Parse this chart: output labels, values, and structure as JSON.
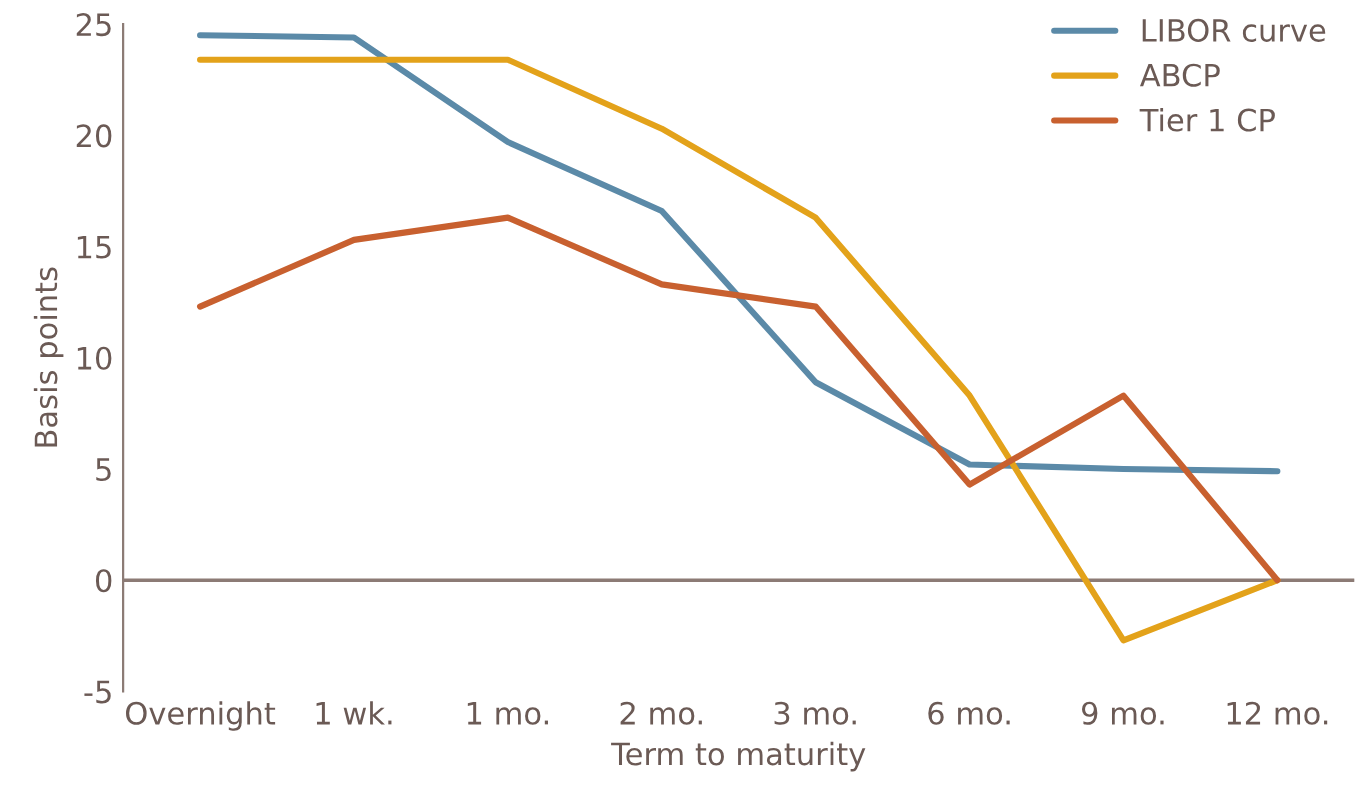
{
  "chart_data": {
    "type": "line",
    "xlabel": "Term to maturity",
    "ylabel": "Basis points",
    "categories": [
      "Overnight",
      "1 wk.",
      "1 mo.",
      "2 mo.",
      "3 mo.",
      "6 mo.",
      "9 mo.",
      "12 mo."
    ],
    "series": [
      {
        "name": "LIBOR curve",
        "color": "#5b8aa8",
        "values": [
          24.5,
          24.4,
          19.7,
          16.6,
          8.9,
          5.2,
          5.0,
          4.9
        ]
      },
      {
        "name": "ABCP",
        "color": "#e3a21a",
        "values": [
          23.4,
          23.4,
          23.4,
          20.3,
          16.3,
          8.3,
          -2.7,
          0
        ]
      },
      {
        "name": "Tier 1 CP",
        "color": "#c8602f",
        "values": [
          12.3,
          15.3,
          16.3,
          13.3,
          12.3,
          4.3,
          8.3,
          0
        ]
      }
    ],
    "ylim": [
      -5,
      25
    ],
    "yticks": [
      -5,
      0,
      5,
      10,
      15,
      20,
      25
    ],
    "ref_lines": [
      {
        "axis": "y",
        "value": 0,
        "color": "#8c7b75"
      }
    ],
    "legend": "top right",
    "grid": false,
    "marker": "none",
    "line_style": "solid"
  }
}
